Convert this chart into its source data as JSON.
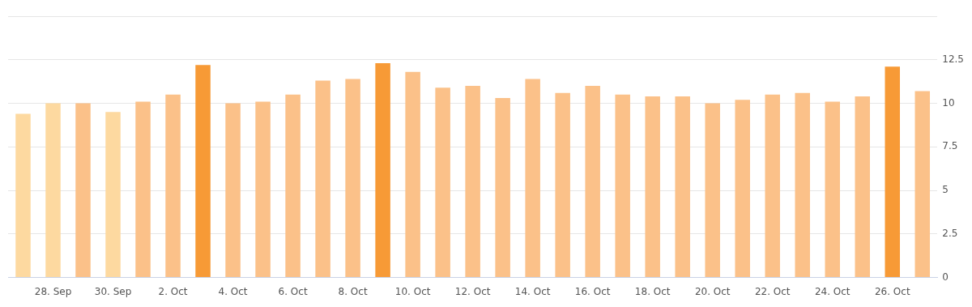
{
  "chart_data": {
    "type": "bar",
    "categories": [
      null,
      "28. Sep",
      null,
      "30. Sep",
      null,
      "2. Oct",
      null,
      "4. Oct",
      null,
      "6. Oct",
      null,
      "8. Oct",
      null,
      "10. Oct",
      null,
      "12. Oct",
      null,
      "14. Oct",
      null,
      "16. Oct",
      null,
      "18. Oct",
      null,
      "20. Oct",
      null,
      "22. Oct",
      null,
      "24. Oct",
      null,
      "26. Oct",
      null
    ],
    "values": [
      9.4,
      10.0,
      10.0,
      9.5,
      10.1,
      10.5,
      12.2,
      10.0,
      10.1,
      10.5,
      11.3,
      11.4,
      12.3,
      11.8,
      10.9,
      11.0,
      10.3,
      11.4,
      10.6,
      11.0,
      10.5,
      10.4,
      10.4,
      10.0,
      10.2,
      10.5,
      10.6,
      10.1,
      10.4,
      12.1,
      10.7
    ],
    "colors": [
      "#fdd9a0",
      "#fdd9a0",
      "#fbc189",
      "#fdd9a0",
      "#fbc189",
      "#fbc189",
      "#f79a36",
      "#fbc189",
      "#fbc189",
      "#fbc189",
      "#fbc189",
      "#fbc189",
      "#f79a36",
      "#fbc189",
      "#fbc189",
      "#fbc189",
      "#fbc189",
      "#fbc189",
      "#fbc189",
      "#fbc189",
      "#fbc189",
      "#fbc189",
      "#fbc189",
      "#fbc189",
      "#fbc189",
      "#fbc189",
      "#fbc189",
      "#fbc189",
      "#fbc189",
      "#f79a36",
      "#fbc189"
    ],
    "ylim": [
      0,
      15
    ],
    "yticks": [
      0,
      2.5,
      5,
      7.5,
      10,
      12.5,
      {
        "value": 15,
        "label": null
      }
    ],
    "grid": "y",
    "legend": false
  }
}
